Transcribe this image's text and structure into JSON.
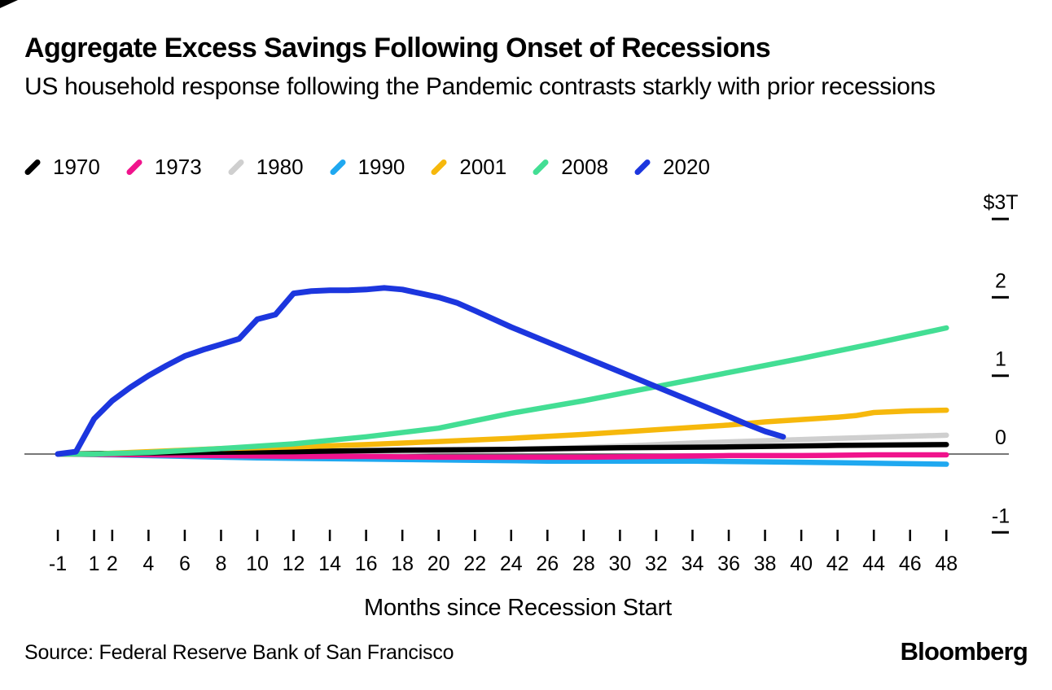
{
  "page": {
    "background": "#FFFFFF"
  },
  "chart_data": {
    "type": "line",
    "title": "Aggregate Excess Savings Following Onset of Recessions",
    "subtitle": "US household response following the Pandemic contrasts starkly with prior recessions",
    "xlabel": "Months since Recession Start",
    "ylabel": "",
    "y_unit": "trillions of US dollars",
    "xlim": [
      -1,
      48
    ],
    "ylim": [
      -1,
      3
    ],
    "grid": false,
    "zero_line": true,
    "legend_position": "top",
    "x_ticks": [
      -1,
      1,
      2,
      4,
      6,
      8,
      10,
      12,
      14,
      16,
      18,
      20,
      22,
      24,
      26,
      28,
      30,
      32,
      34,
      36,
      38,
      40,
      42,
      44,
      46,
      48
    ],
    "y_ticks": [
      {
        "label": "$3T",
        "value": 3
      },
      {
        "label": "2",
        "value": 2
      },
      {
        "label": "1",
        "value": 1
      },
      {
        "label": "0",
        "value": 0
      },
      {
        "label": "-1",
        "value": -1
      }
    ],
    "series": [
      {
        "name": "1970",
        "color": "#000000",
        "x": [
          -1,
          6,
          12,
          18,
          24,
          30,
          36,
          42,
          48
        ],
        "values": [
          0,
          0.02,
          0.03,
          0.05,
          0.06,
          0.08,
          0.09,
          0.11,
          0.12
        ]
      },
      {
        "name": "1973",
        "color": "#F0138C",
        "x": [
          -1,
          4,
          8,
          12,
          16,
          20,
          24,
          28,
          32,
          36,
          40,
          44,
          48
        ],
        "values": [
          0,
          -0.01,
          -0.02,
          -0.03,
          -0.03,
          -0.04,
          -0.04,
          -0.04,
          -0.03,
          -0.02,
          -0.02,
          -0.01,
          -0.01
        ]
      },
      {
        "name": "1980",
        "color": "#CFCFCF",
        "x": [
          -1,
          6,
          12,
          18,
          22,
          26,
          30,
          34,
          38,
          42,
          45,
          48
        ],
        "values": [
          0,
          0.01,
          0.02,
          0.03,
          0.05,
          0.07,
          0.1,
          0.14,
          0.17,
          0.2,
          0.22,
          0.24
        ]
      },
      {
        "name": "1990",
        "color": "#1FA8F0",
        "x": [
          -1,
          2,
          6,
          10,
          14,
          18,
          22,
          26,
          30,
          34,
          38,
          42,
          45,
          48
        ],
        "values": [
          0,
          -0.01,
          -0.03,
          -0.05,
          -0.06,
          -0.07,
          -0.08,
          -0.09,
          -0.09,
          -0.09,
          -0.1,
          -0.11,
          -0.12,
          -0.13
        ]
      },
      {
        "name": "2001",
        "color": "#F6B80C",
        "x": [
          -1,
          1,
          4,
          6,
          8,
          12,
          16,
          20,
          24,
          28,
          32,
          36,
          38,
          40,
          42,
          43,
          44,
          46,
          48
        ],
        "values": [
          0,
          0,
          0.03,
          0.05,
          0.07,
          0.09,
          0.12,
          0.16,
          0.2,
          0.25,
          0.31,
          0.37,
          0.41,
          0.44,
          0.47,
          0.49,
          0.53,
          0.55,
          0.56
        ]
      },
      {
        "name": "2008",
        "color": "#43DE94",
        "x": [
          -1,
          1,
          4,
          8,
          12,
          16,
          20,
          24,
          28,
          32,
          36,
          40,
          44,
          48
        ],
        "values": [
          0,
          0,
          0.02,
          0.07,
          0.13,
          0.22,
          0.33,
          0.52,
          0.68,
          0.86,
          1.04,
          1.22,
          1.41,
          1.61
        ]
      },
      {
        "name": "2020",
        "color": "#1C36DE",
        "x": [
          -1,
          0,
          1,
          2,
          3,
          4,
          5,
          6,
          7,
          8,
          9,
          10,
          11,
          12,
          13,
          14,
          15,
          16,
          17,
          18,
          19,
          20,
          21,
          22,
          24,
          26,
          28,
          30,
          32,
          34,
          36,
          37,
          38,
          39
        ],
        "values": [
          0,
          0.03,
          0.45,
          0.68,
          0.85,
          1.0,
          1.13,
          1.25,
          1.33,
          1.4,
          1.47,
          1.72,
          1.78,
          2.05,
          2.08,
          2.09,
          2.09,
          2.1,
          2.12,
          2.1,
          2.05,
          2.0,
          1.93,
          1.83,
          1.62,
          1.43,
          1.24,
          1.05,
          0.86,
          0.67,
          0.48,
          0.38,
          0.29,
          0.22
        ]
      }
    ]
  },
  "footer": {
    "source": "Source: Federal Reserve Bank of San Francisco",
    "brand": "Bloomberg"
  }
}
